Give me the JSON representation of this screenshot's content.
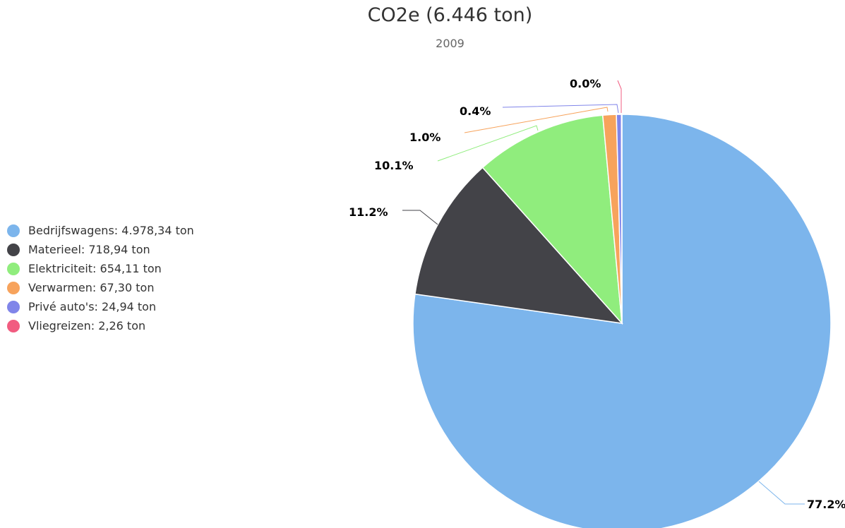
{
  "chart_data": {
    "type": "pie",
    "title": "CO2e (6.446 ton)",
    "subtitle": "2009",
    "legend_position": "left",
    "slices": [
      {
        "name": "Bedrijfswagens",
        "legend_label": "Bedrijfswagens: 4.978,34 ton",
        "value": 4978.34,
        "percent_label": "77.2%",
        "color": "#7cb5ec"
      },
      {
        "name": "Materieel",
        "legend_label": "Materieel: 718,94 ton",
        "value": 718.94,
        "percent_label": "11.2%",
        "color": "#434348"
      },
      {
        "name": "Elektriciteit",
        "legend_label": "Elektriciteit: 654,11 ton",
        "value": 654.11,
        "percent_label": "10.1%",
        "color": "#90ed7d"
      },
      {
        "name": "Verwarmen",
        "legend_label": "Verwarmen: 67,30 ton",
        "value": 67.3,
        "percent_label": "1.0%",
        "color": "#f7a35c"
      },
      {
        "name": "Privé auto's",
        "legend_label": "Privé auto's: 24,94 ton",
        "value": 24.94,
        "percent_label": "0.4%",
        "color": "#8085e9"
      },
      {
        "name": "Vliegreizen",
        "legend_label": "Vliegreizen: 2,26 ton",
        "value": 2.26,
        "percent_label": "0.0%",
        "color": "#f15c80"
      }
    ]
  }
}
